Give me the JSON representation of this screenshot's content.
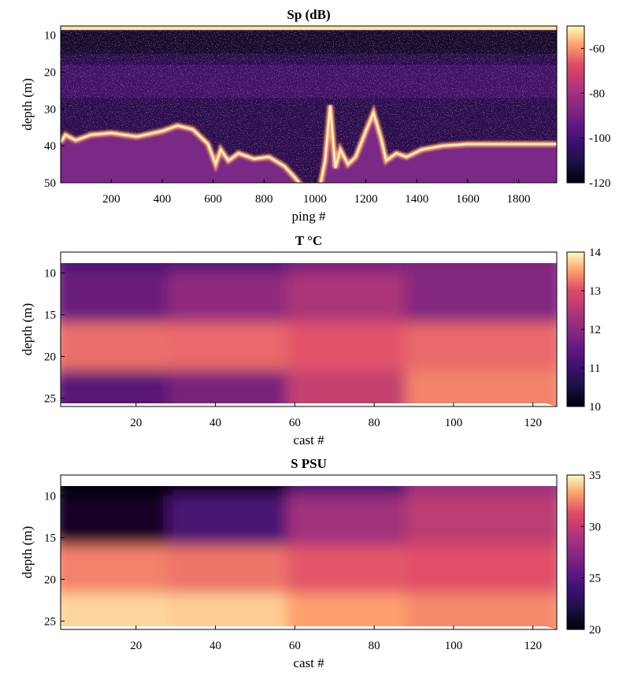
{
  "chart_data": [
    {
      "type": "heatmap",
      "title": "Sp (dB)",
      "xlabel": "ping #",
      "ylabel": "depth (m)",
      "xlim": [
        1,
        1950
      ],
      "ylim": [
        50,
        7.5
      ],
      "xticks": [
        200,
        400,
        600,
        800,
        1000,
        1200,
        1400,
        1600,
        1800
      ],
      "yticks": [
        10,
        20,
        30,
        40,
        50
      ],
      "colorbar": {
        "min": -120,
        "max": -50,
        "ticks": [
          -60,
          -80,
          -100,
          -120
        ]
      },
      "colormap": [
        "#000004",
        "#3b0f70",
        "#8c2981",
        "#de4968",
        "#fe9f6d",
        "#fcfdbf"
      ],
      "seabed_depth": [
        {
          "ping": 1,
          "depth": 39
        },
        {
          "ping": 20,
          "depth": 37
        },
        {
          "ping": 60,
          "depth": 38.5
        },
        {
          "ping": 120,
          "depth": 37
        },
        {
          "ping": 200,
          "depth": 36.5
        },
        {
          "ping": 300,
          "depth": 37.5
        },
        {
          "ping": 400,
          "depth": 36
        },
        {
          "ping": 460,
          "depth": 34.5
        },
        {
          "ping": 520,
          "depth": 35.5
        },
        {
          "ping": 580,
          "depth": 39.5
        },
        {
          "ping": 610,
          "depth": 45
        },
        {
          "ping": 630,
          "depth": 41
        },
        {
          "ping": 660,
          "depth": 44
        },
        {
          "ping": 700,
          "depth": 42
        },
        {
          "ping": 760,
          "depth": 43.5
        },
        {
          "ping": 820,
          "depth": 43
        },
        {
          "ping": 880,
          "depth": 45.5
        },
        {
          "ping": 920,
          "depth": 48.5
        },
        {
          "ping": 950,
          "depth": 51
        },
        {
          "ping": 1020,
          "depth": 51
        },
        {
          "ping": 1040,
          "depth": 44
        },
        {
          "ping": 1060,
          "depth": 29
        },
        {
          "ping": 1080,
          "depth": 46
        },
        {
          "ping": 1100,
          "depth": 41
        },
        {
          "ping": 1130,
          "depth": 45
        },
        {
          "ping": 1160,
          "depth": 43
        },
        {
          "ping": 1200,
          "depth": 36
        },
        {
          "ping": 1230,
          "depth": 31
        },
        {
          "ping": 1260,
          "depth": 38
        },
        {
          "ping": 1280,
          "depth": 44
        },
        {
          "ping": 1320,
          "depth": 42
        },
        {
          "ping": 1360,
          "depth": 43
        },
        {
          "ping": 1420,
          "depth": 41
        },
        {
          "ping": 1500,
          "depth": 40
        },
        {
          "ping": 1600,
          "depth": 39.5
        },
        {
          "ping": 1700,
          "depth": 39.5
        },
        {
          "ping": 1800,
          "depth": 39.5
        },
        {
          "ping": 1950,
          "depth": 39.5
        }
      ]
    },
    {
      "type": "heatmap",
      "title": "T °C",
      "xlabel": "cast #",
      "ylabel": "depth (m)",
      "xlim": [
        1,
        126
      ],
      "ylim": [
        26,
        7.5
      ],
      "xticks": [
        20,
        40,
        60,
        80,
        100,
        120
      ],
      "yticks": [
        10,
        15,
        20,
        25
      ],
      "colorbar": {
        "min": 10,
        "max": 14,
        "ticks": [
          10,
          11,
          12,
          13,
          14
        ]
      },
      "colormap": [
        "#000004",
        "#3b0f70",
        "#8c2981",
        "#de4968",
        "#fe9f6d",
        "#fcfdbf"
      ],
      "profile_values": [
        {
          "cast": 1,
          "t_surface": 11.0,
          "t_mid": 11.2,
          "t_deep": 12.7,
          "t_bottom": 11.0
        },
        {
          "cast": 30,
          "t_surface": 11.0,
          "t_mid": 11.3,
          "t_deep": 12.8,
          "t_bottom": 11.2
        },
        {
          "cast": 60,
          "t_surface": 11.1,
          "t_mid": 12.0,
          "t_deep": 12.6,
          "t_bottom": 11.6
        },
        {
          "cast": 90,
          "t_surface": 11.7,
          "t_mid": 11.8,
          "t_deep": 12.4,
          "t_bottom": 12.7
        },
        {
          "cast": 126,
          "t_surface": 11.3,
          "t_mid": 11.2,
          "t_deep": 13.0,
          "t_bottom": 13.2
        }
      ]
    },
    {
      "type": "heatmap",
      "title": "S PSU",
      "xlabel": "cast #",
      "ylabel": "depth (m)",
      "xlim": [
        1,
        126
      ],
      "ylim": [
        26,
        7.5
      ],
      "xticks": [
        20,
        40,
        60,
        80,
        100,
        120
      ],
      "yticks": [
        10,
        15,
        20,
        25
      ],
      "colorbar": {
        "min": 20,
        "max": 35,
        "ticks": [
          20,
          25,
          30,
          35
        ]
      },
      "colormap": [
        "#000004",
        "#3b0f70",
        "#8c2981",
        "#de4968",
        "#fe9f6d",
        "#fcfdbf"
      ],
      "profile_values": [
        {
          "cast": 1,
          "s_surface": 20,
          "s_mid": 21,
          "s_deep": 31,
          "s_bottom": 33.5
        },
        {
          "cast": 30,
          "s_surface": 20,
          "s_mid": 21,
          "s_deep": 31,
          "s_bottom": 34
        },
        {
          "cast": 60,
          "s_surface": 21,
          "s_mid": 26,
          "s_deep": 30,
          "s_bottom": 33
        },
        {
          "cast": 90,
          "s_surface": 26,
          "s_mid": 27.5,
          "s_deep": 29,
          "s_bottom": 31
        },
        {
          "cast": 126,
          "s_surface": 27,
          "s_mid": 28,
          "s_deep": 29.5,
          "s_bottom": 31.5
        }
      ]
    }
  ]
}
